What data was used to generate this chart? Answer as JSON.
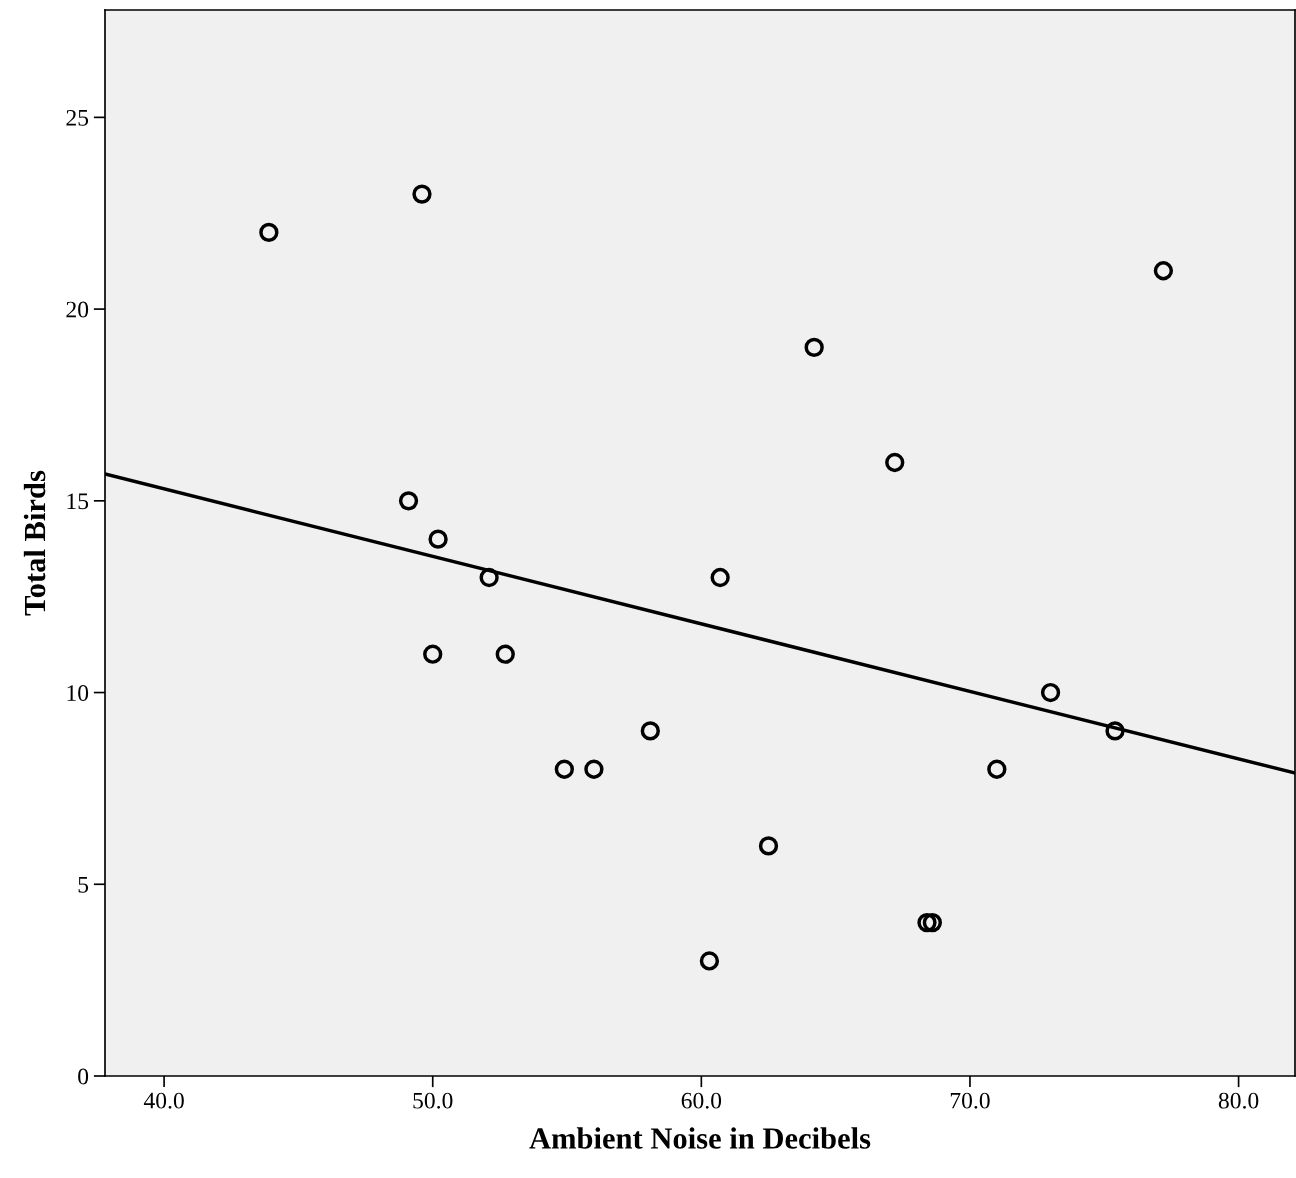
{
  "chart_data": {
    "type": "scatter",
    "xlabel": "Ambient Noise in Decibels",
    "ylabel": "Total Birds",
    "xlim": [
      37.8,
      82.1
    ],
    "ylim": [
      0,
      27.8
    ],
    "xticks": [
      {
        "value": 40,
        "label": "40.0"
      },
      {
        "value": 50,
        "label": "50.0"
      },
      {
        "value": 60,
        "label": "60.0"
      },
      {
        "value": 70,
        "label": "70.0"
      },
      {
        "value": 80,
        "label": "80.0"
      }
    ],
    "yticks": [
      0,
      5,
      10,
      15,
      20,
      25
    ],
    "grid": false,
    "series": [
      {
        "marker": "circle",
        "color": "#000000",
        "x": [
          43.9,
          49.6,
          49.1,
          50.2,
          52.1,
          50.0,
          52.7,
          54.9,
          56.0,
          58.1,
          60.7,
          60.3,
          62.5,
          64.2,
          67.2,
          68.4,
          68.6,
          71.0,
          73.0,
          75.4,
          77.2
        ],
        "values": [
          22,
          23,
          15,
          14,
          13,
          11,
          11,
          8,
          8,
          9,
          13,
          3,
          6,
          19,
          16,
          4,
          4,
          8,
          10,
          9,
          21
        ]
      },
      {
        "type": "line",
        "color": "#000000",
        "line_style": "solid",
        "x": [
          37.8,
          82.1
        ],
        "values": [
          15.7,
          7.9
        ]
      }
    ]
  }
}
